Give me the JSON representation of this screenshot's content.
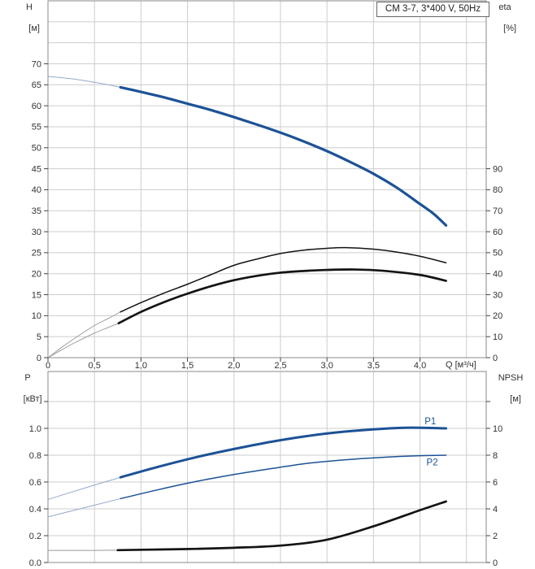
{
  "title_box": "CM 3-7, 3*400 V, 50Hz",
  "colors": {
    "curve_blue": "#1c5296",
    "curve_blue_muted": "#93a9cc",
    "curve_black": "#141414",
    "curve_gray_muted": "#979797",
    "grid": "#cdcdcd",
    "frame": "#888888",
    "tick": "#444444",
    "text": "#333333"
  },
  "chart_data": [
    {
      "type": "line",
      "name": "qh-eta-chart",
      "title_box": "CM 3-7, 3*400 V, 50Hz",
      "x_axis": {
        "label": "Q [м³/ч]",
        "min": 0,
        "max": 4.712,
        "grid_step": 0.5,
        "show_tick_labels": true,
        "ticks": [
          {
            "v": 0,
            "t": "0"
          },
          {
            "v": 0.5,
            "t": "0,5"
          },
          {
            "v": 1,
            "t": "1,0"
          },
          {
            "v": 1.5,
            "t": "1,5"
          },
          {
            "v": 2,
            "t": "2,0"
          },
          {
            "v": 2.5,
            "t": "2,5"
          },
          {
            "v": 3,
            "t": "3,0"
          },
          {
            "v": 3.5,
            "t": "3,5"
          },
          {
            "v": 4,
            "t": "4,0"
          }
        ]
      },
      "left_axis": {
        "title": "H",
        "unit": "[м]",
        "min": 0,
        "max": 85,
        "grid_step": 5,
        "ticks": [
          {
            "v": 0,
            "t": "0"
          },
          {
            "v": 5,
            "t": "5"
          },
          {
            "v": 10,
            "t": "10"
          },
          {
            "v": 15,
            "t": "15"
          },
          {
            "v": 20,
            "t": "20"
          },
          {
            "v": 25,
            "t": "25"
          },
          {
            "v": 30,
            "t": "30"
          },
          {
            "v": 35,
            "t": "35"
          },
          {
            "v": 40,
            "t": "40"
          },
          {
            "v": 45,
            "t": "45"
          },
          {
            "v": 50,
            "t": "50"
          },
          {
            "v": 55,
            "t": "55"
          },
          {
            "v": 60,
            "t": "60"
          },
          {
            "v": 65,
            "t": "65"
          },
          {
            "v": 70,
            "t": "70"
          }
        ]
      },
      "right_axis": {
        "title": "eta",
        "unit": "[%]",
        "min": 0,
        "max": 170,
        "grid_step": 10,
        "ticks": [
          {
            "v": 0,
            "t": "0"
          },
          {
            "v": 10,
            "t": "10"
          },
          {
            "v": 20,
            "t": "20"
          },
          {
            "v": 30,
            "t": "30"
          },
          {
            "v": 40,
            "t": "40"
          },
          {
            "v": 50,
            "t": "50"
          },
          {
            "v": 60,
            "t": "60"
          },
          {
            "v": 70,
            "t": "70"
          },
          {
            "v": 80,
            "t": "80"
          },
          {
            "v": 90,
            "t": "90"
          }
        ]
      },
      "series": [
        {
          "name": "head-curve",
          "axis": "left",
          "segments": [
            {
              "weight": "thin",
              "color": "#93a9cc",
              "width": 1,
              "points": [
                [
                  0,
                  67
                ],
                [
                  0.3,
                  66.3
                ],
                [
                  0.55,
                  65.4
                ],
                [
                  0.78,
                  64.4
                ]
              ]
            },
            {
              "weight": "thick",
              "color": "#1c5296",
              "width": 3.2,
              "points": [
                [
                  0.78,
                  64.4
                ],
                [
                  1.0,
                  63.3
                ],
                [
                  1.25,
                  62.0
                ],
                [
                  1.5,
                  60.5
                ],
                [
                  1.75,
                  59.0
                ],
                [
                  2.0,
                  57.3
                ],
                [
                  2.25,
                  55.5
                ],
                [
                  2.5,
                  53.6
                ],
                [
                  2.75,
                  51.5
                ],
                [
                  3.0,
                  49.2
                ],
                [
                  3.25,
                  46.6
                ],
                [
                  3.5,
                  43.8
                ],
                [
                  3.75,
                  40.5
                ],
                [
                  4.0,
                  36.6
                ],
                [
                  4.15,
                  34.2
                ],
                [
                  4.28,
                  31.5
                ]
              ]
            }
          ]
        },
        {
          "name": "eta-pump-curve",
          "axis": "right",
          "segments": [
            {
              "weight": "thin",
              "color": "#979797",
              "width": 0.9,
              "points": [
                [
                  0,
                  0
                ],
                [
                  0.15,
                  5.0
                ],
                [
                  0.3,
                  9.6
                ],
                [
                  0.5,
                  15.3
                ],
                [
                  0.65,
                  18.7
                ],
                [
                  0.78,
                  21.8
                ]
              ]
            },
            {
              "weight": "thick",
              "color": "#141414",
              "width": 1.5,
              "points": [
                [
                  0.78,
                  21.8
                ],
                [
                  1.0,
                  26.2
                ],
                [
                  1.25,
                  30.8
                ],
                [
                  1.5,
                  35.0
                ],
                [
                  1.75,
                  39.5
                ],
                [
                  2.0,
                  44.0
                ],
                [
                  2.25,
                  47.0
                ],
                [
                  2.5,
                  49.6
                ],
                [
                  2.75,
                  51.2
                ],
                [
                  3.0,
                  52.1
                ],
                [
                  3.2,
                  52.4
                ],
                [
                  3.5,
                  51.7
                ],
                [
                  3.75,
                  50.3
                ],
                [
                  4.0,
                  48.3
                ],
                [
                  4.28,
                  45.2
                ]
              ]
            }
          ]
        },
        {
          "name": "eta-pump-motor-curve",
          "axis": "right",
          "segments": [
            {
              "weight": "thin",
              "color": "#979797",
              "width": 0.9,
              "points": [
                [
                  0,
                  0
                ],
                [
                  0.15,
                  3.8
                ],
                [
                  0.3,
                  7.4
                ],
                [
                  0.5,
                  11.7
                ],
                [
                  0.65,
                  14.4
                ],
                [
                  0.76,
                  16.4
                ]
              ]
            },
            {
              "weight": "thick",
              "color": "#141414",
              "width": 2.7,
              "points": [
                [
                  0.76,
                  16.4
                ],
                [
                  1.0,
                  21.8
                ],
                [
                  1.25,
                  26.5
                ],
                [
                  1.5,
                  30.5
                ],
                [
                  1.75,
                  34.0
                ],
                [
                  2.0,
                  36.9
                ],
                [
                  2.25,
                  39.0
                ],
                [
                  2.5,
                  40.5
                ],
                [
                  2.75,
                  41.3
                ],
                [
                  3.0,
                  41.8
                ],
                [
                  3.3,
                  42.0
                ],
                [
                  3.6,
                  41.4
                ],
                [
                  4.0,
                  39.4
                ],
                [
                  4.28,
                  36.6
                ]
              ]
            }
          ]
        }
      ]
    },
    {
      "type": "line",
      "name": "power-npsh-chart",
      "x_axis": {
        "label": "",
        "min": 0,
        "max": 4.712,
        "grid_step": 0.5,
        "show_tick_labels": false,
        "ticks": []
      },
      "left_axis": {
        "title": "P",
        "unit": "[кВт]",
        "min": 0,
        "max": 1.424,
        "grid_step": 0.2,
        "ticks": [
          {
            "v": 0,
            "t": "0.0"
          },
          {
            "v": 0.2,
            "t": "0.2"
          },
          {
            "v": 0.4,
            "t": "0.4"
          },
          {
            "v": 0.6,
            "t": "0.6"
          },
          {
            "v": 0.8,
            "t": "0.8"
          },
          {
            "v": 1.0,
            "t": "1.0"
          },
          {
            "v": 1.2,
            "t": ""
          }
        ]
      },
      "right_axis": {
        "title": "NPSH",
        "unit": "[м]",
        "min": 0,
        "max": 14.24,
        "grid_step": 2,
        "ticks": [
          {
            "v": 0,
            "t": "0"
          },
          {
            "v": 2,
            "t": "2"
          },
          {
            "v": 4,
            "t": "4"
          },
          {
            "v": 6,
            "t": "6"
          },
          {
            "v": 8,
            "t": "8"
          },
          {
            "v": 10,
            "t": "10"
          },
          {
            "v": 12,
            "t": ""
          }
        ]
      },
      "series": [
        {
          "name": "p1-curve",
          "axis": "left",
          "label": {
            "text": "P1",
            "q": 4.05,
            "v": 1.03
          },
          "segments": [
            {
              "weight": "thin",
              "color": "#93a9cc",
              "width": 1,
              "points": [
                [
                  0,
                  0.47
                ],
                [
                  0.4,
                  0.556
                ],
                [
                  0.78,
                  0.635
                ]
              ]
            },
            {
              "weight": "thick",
              "color": "#1c5296",
              "width": 3,
              "points": [
                [
                  0.78,
                  0.635
                ],
                [
                  1.2,
                  0.716
                ],
                [
                  1.6,
                  0.786
                ],
                [
                  2.0,
                  0.846
                ],
                [
                  2.4,
                  0.9
                ],
                [
                  2.8,
                  0.944
                ],
                [
                  3.2,
                  0.976
                ],
                [
                  3.6,
                  0.997
                ],
                [
                  3.9,
                  1.005
                ],
                [
                  4.28,
                  1.0
                ]
              ]
            }
          ]
        },
        {
          "name": "p2-curve",
          "axis": "left",
          "label": {
            "text": "P2",
            "q": 4.07,
            "v": 0.725
          },
          "segments": [
            {
              "weight": "thin",
              "color": "#93a9cc",
              "width": 1,
              "points": [
                [
                  0,
                  0.34
                ],
                [
                  0.4,
                  0.41
                ],
                [
                  0.78,
                  0.476
                ]
              ]
            },
            {
              "weight": "thick",
              "color": "#1c5296",
              "width": 1.5,
              "points": [
                [
                  0.78,
                  0.476
                ],
                [
                  1.2,
                  0.545
                ],
                [
                  1.6,
                  0.605
                ],
                [
                  2.0,
                  0.656
                ],
                [
                  2.4,
                  0.7
                ],
                [
                  2.8,
                  0.74
                ],
                [
                  3.2,
                  0.766
                ],
                [
                  3.6,
                  0.784
                ],
                [
                  4.0,
                  0.796
                ],
                [
                  4.28,
                  0.8
                ]
              ]
            }
          ]
        },
        {
          "name": "npsh-curve",
          "axis": "right",
          "segments": [
            {
              "weight": "thin",
              "color": "#9a9a9a",
              "width": 1,
              "points": [
                [
                  0,
                  0.9
                ],
                [
                  0.4,
                  0.9
                ],
                [
                  0.75,
                  0.92
                ]
              ]
            },
            {
              "weight": "thick",
              "color": "#141414",
              "width": 2.7,
              "points": [
                [
                  0.75,
                  0.92
                ],
                [
                  1.2,
                  0.97
                ],
                [
                  1.6,
                  1.02
                ],
                [
                  2.0,
                  1.1
                ],
                [
                  2.5,
                  1.26
                ],
                [
                  3.0,
                  1.7
                ],
                [
                  3.5,
                  2.7
                ],
                [
                  4.0,
                  3.9
                ],
                [
                  4.28,
                  4.55
                ]
              ]
            }
          ]
        }
      ]
    }
  ]
}
